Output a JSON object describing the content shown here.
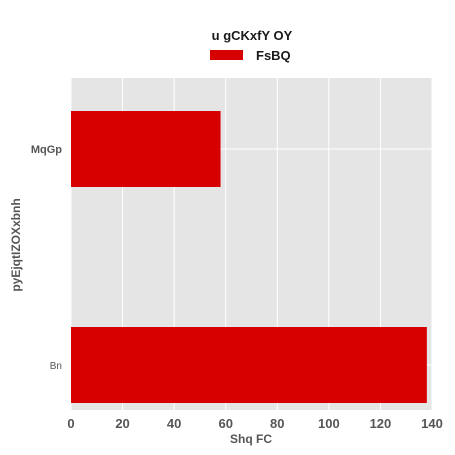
{
  "chart_data": {
    "type": "bar",
    "orientation": "horizontal",
    "categories": [
      "MqGp",
      "Bn"
    ],
    "series": [
      {
        "name": "FsBQ",
        "values": [
          58,
          138
        ],
        "color": "#d60000"
      }
    ],
    "legend_title": "u  gCKxfY OY",
    "xlabel": "Shq FC",
    "ylabel": "pyEjqtIZOXxbnh",
    "xlim": [
      0,
      140
    ],
    "xticks": [
      0,
      20,
      40,
      60,
      80,
      100,
      120,
      140
    ],
    "grid": true,
    "legend_position": "top-center",
    "background": "#e5e5e5",
    "grid_color": "#ffffff"
  }
}
